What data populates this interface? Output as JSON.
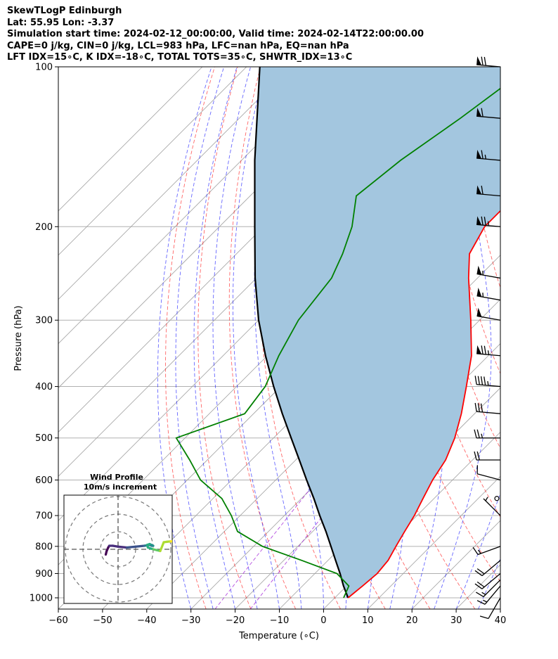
{
  "header": {
    "line1": "SkewTLogP Edinburgh",
    "line2": "Lat: 55.95   Lon: -3.37",
    "line3": "Simulation start time: 2024-02-12_00:00:00, Valid time: 2024-02-14T22:00:00.00",
    "line4": "CAPE=0 j/kg, CIN=0 j/kg, LCL=983 hPa, LFC=nan hPa, EQ=nan hPa",
    "line5": "LFT IDX=15∘C, K IDX=-18∘C, TOTAL TOTS=35∘C, SHWTR_IDX=13∘C"
  },
  "inset": {
    "title_line1": "Wind Profile",
    "title_line2": "10m/s increment"
  },
  "colors": {
    "temperature": "#ff0000",
    "dewpoint": "#008000",
    "parcel": "#000000",
    "shade": "#a3c6df",
    "dry_adiabat": "#ff0000",
    "moist_adiabat": "#0000ff",
    "mixing_ratio": "#9400d3",
    "isotherm": "#a0a0a0"
  },
  "chart_data": {
    "type": "skewt",
    "xlabel": "Temperature ($^\\circ$C)",
    "ylabel": "Pressure (hPa)",
    "xlim": [
      -60,
      40
    ],
    "ylim": [
      1050,
      100
    ],
    "y_scale": "log",
    "x_ticks": [
      "−60",
      "−50",
      "−40",
      "−30",
      "−20",
      "−10",
      "0",
      "10",
      "20",
      "30",
      "40"
    ],
    "y_ticks": [
      100,
      200,
      300,
      400,
      500,
      600,
      700,
      800,
      900,
      1000
    ],
    "grid": true,
    "series": [
      {
        "name": "temperature",
        "p": [
          1000,
          950,
          900,
          850,
          800,
          750,
          700,
          650,
          600,
          550,
          500,
          450,
          400,
          350,
          300,
          250,
          225,
          200,
          175,
          150,
          125,
          100
        ],
        "t": [
          3,
          3.6,
          4.1,
          3.6,
          2.2,
          0.8,
          -0.6,
          -2.5,
          -4.5,
          -6.1,
          -9,
          -13,
          -18,
          -23.8,
          -32,
          -42,
          -47.3,
          -50,
          -50,
          -47,
          -49.5,
          -52
        ]
      },
      {
        "name": "dewpoint",
        "p": [
          1000,
          950,
          900,
          850,
          800,
          750,
          700,
          650,
          600,
          550,
          500,
          450,
          400,
          350,
          300,
          250,
          225,
          200,
          175,
          150,
          125,
          100
        ],
        "t": [
          2,
          0.5,
          -5,
          -16,
          -28,
          -37,
          -42,
          -48,
          -57,
          -64,
          -72,
          -62,
          -63.5,
          -67.4,
          -71,
          -73,
          -76,
          -80,
          -86,
          -84,
          -80,
          -76
        ]
      },
      {
        "name": "parcel",
        "p": [
          1000,
          950,
          900,
          850,
          800,
          750,
          700,
          650,
          600,
          550,
          500,
          450,
          400,
          350,
          300,
          250,
          200,
          150,
          100
        ],
        "t": [
          3,
          -0.7,
          -4.3,
          -8.3,
          -12.5,
          -17,
          -22,
          -27.2,
          -33,
          -39.2,
          -46,
          -53.5,
          -61.6,
          -70.4,
          -80,
          -90.3,
          -102,
          -117,
          -137
        ]
      }
    ],
    "wind_barbs": [
      {
        "p": 100,
        "speed_kt": 70,
        "dir": 275
      },
      {
        "p": 125,
        "speed_kt": 60,
        "dir": 275
      },
      {
        "p": 150,
        "speed_kt": 65,
        "dir": 275
      },
      {
        "p": 175,
        "speed_kt": 60,
        "dir": 275
      },
      {
        "p": 200,
        "speed_kt": 75,
        "dir": 275
      },
      {
        "p": 250,
        "speed_kt": 55,
        "dir": 280
      },
      {
        "p": 275,
        "speed_kt": 55,
        "dir": 280
      },
      {
        "p": 300,
        "speed_kt": 50,
        "dir": 280
      },
      {
        "p": 350,
        "speed_kt": 75,
        "dir": 275
      },
      {
        "p": 400,
        "speed_kt": 45,
        "dir": 275
      },
      {
        "p": 450,
        "speed_kt": 30,
        "dir": 275
      },
      {
        "p": 500,
        "speed_kt": 25,
        "dir": 270
      },
      {
        "p": 550,
        "speed_kt": 20,
        "dir": 270
      },
      {
        "p": 600,
        "speed_kt": 10,
        "dir": 285
      },
      {
        "p": 650,
        "speed_kt": 0,
        "dir": 0
      },
      {
        "p": 700,
        "speed_kt": 5,
        "dir": 315
      },
      {
        "p": 800,
        "speed_kt": 15,
        "dir": 250
      },
      {
        "p": 850,
        "speed_kt": 20,
        "dir": 230
      },
      {
        "p": 900,
        "speed_kt": 20,
        "dir": 230
      },
      {
        "p": 925,
        "speed_kt": 15,
        "dir": 225
      },
      {
        "p": 950,
        "speed_kt": 15,
        "dir": 220
      },
      {
        "p": 1000,
        "speed_kt": 10,
        "dir": 210
      }
    ],
    "hodograph": {
      "ring_step_ms": 10,
      "u": [
        -7,
        -6.5,
        -5.6,
        -5,
        -3,
        0,
        5,
        10,
        15,
        18,
        19,
        20,
        19,
        18,
        16.5,
        17,
        20,
        22,
        24,
        26,
        28,
        30,
        32,
        34
      ],
      "v": [
        -3,
        -1,
        1,
        2,
        2,
        1.5,
        1,
        1.5,
        2,
        2.5,
        2,
        2,
        2.5,
        3,
        2.5,
        1,
        0,
        -0.5,
        -1,
        4,
        4.3,
        4.5,
        4.6,
        4.7
      ]
    }
  }
}
